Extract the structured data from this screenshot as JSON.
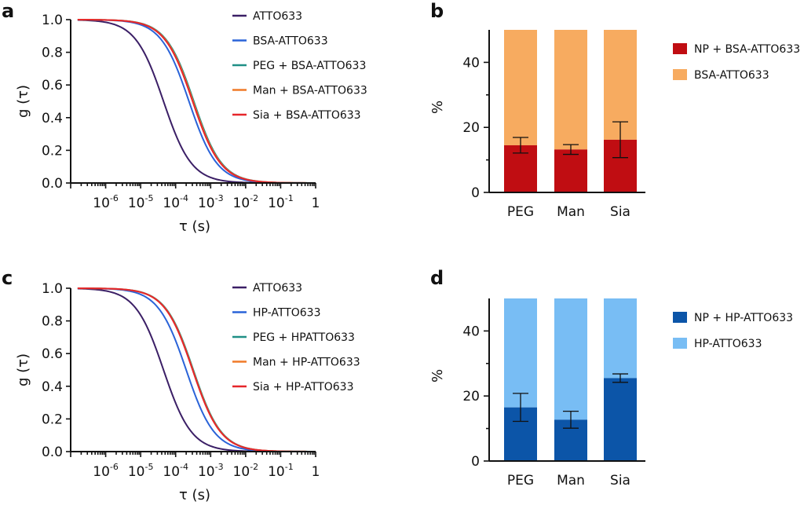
{
  "chart_data": [
    {
      "panel": "a",
      "type": "line",
      "xscale": "log",
      "xlabel": "τ (s)",
      "ylabel": "g (τ)",
      "xlim": [
        1e-07,
        1
      ],
      "ylim": [
        0,
        1.0
      ],
      "x_ticks": [
        {
          "base": "10",
          "exp": "-6",
          "value": 1e-06
        },
        {
          "base": "10",
          "exp": "-5",
          "value": 1e-05
        },
        {
          "base": "10",
          "exp": "-4",
          "value": 0.0001
        },
        {
          "base": "10",
          "exp": "-3",
          "value": 0.001
        },
        {
          "base": "10",
          "exp": "-2",
          "value": 0.01
        },
        {
          "base": "10",
          "exp": "-1",
          "value": 0.1
        },
        {
          "base": "1",
          "exp": "",
          "value": 1
        }
      ],
      "y_ticks": [
        "0.0",
        "0.2",
        "0.4",
        "0.6",
        "0.8",
        "1.0"
      ],
      "y_tick_values": [
        0,
        0.2,
        0.4,
        0.6,
        0.8,
        1.0
      ],
      "series": [
        {
          "name": "ATTO633",
          "color": "#3b1f66",
          "tau_half": 4.5e-05
        },
        {
          "name": "BSA-ATTO633",
          "color": "#2a63d8",
          "tau_half": 0.00024
        },
        {
          "name": "PEG + BSA-ATTO633",
          "color": "#1f8f86",
          "tau_half": 0.00033
        },
        {
          "name": "Man + BSA-ATTO633",
          "color": "#f07a28",
          "tau_half": 0.000315
        },
        {
          "name": "Sia + BSA-ATTO633",
          "color": "#e6262b",
          "tau_half": 0.000305
        }
      ]
    },
    {
      "panel": "b",
      "type": "bar",
      "stacked": true,
      "categories": [
        "PEG",
        "Man",
        "Sia"
      ],
      "ylabel": "%",
      "ylim": [
        0,
        50
      ],
      "y_ticks": [
        "0",
        "20",
        "40"
      ],
      "y_tick_values": [
        0,
        20,
        40
      ],
      "series": [
        {
          "name": "NP + BSA-ATTO633",
          "color": "#c00d12",
          "values": [
            14.5,
            13.2,
            16.2
          ],
          "errors": [
            2.4,
            1.5,
            5.5
          ]
        },
        {
          "name": "BSA-ATTO633",
          "color": "#f7ab60",
          "values": [
            35.5,
            36.8,
            33.8
          ]
        }
      ]
    },
    {
      "panel": "c",
      "type": "line",
      "xscale": "log",
      "xlabel": "τ (s)",
      "ylabel": "g (τ)",
      "xlim": [
        1e-07,
        1
      ],
      "ylim": [
        0,
        1.0
      ],
      "x_ticks": [
        {
          "base": "10",
          "exp": "-6",
          "value": 1e-06
        },
        {
          "base": "10",
          "exp": "-5",
          "value": 1e-05
        },
        {
          "base": "10",
          "exp": "-4",
          "value": 0.0001
        },
        {
          "base": "10",
          "exp": "-3",
          "value": 0.001
        },
        {
          "base": "10",
          "exp": "-2",
          "value": 0.01
        },
        {
          "base": "10",
          "exp": "-1",
          "value": 0.1
        },
        {
          "base": "1",
          "exp": "",
          "value": 1
        }
      ],
      "y_ticks": [
        "0.0",
        "0.2",
        "0.4",
        "0.6",
        "0.8",
        "1.0"
      ],
      "y_tick_values": [
        0,
        0.2,
        0.4,
        0.6,
        0.8,
        1.0
      ],
      "series": [
        {
          "name": "ATTO633",
          "color": "#3b1f66",
          "tau_half": 4.5e-05
        },
        {
          "name": "HP-ATTO633",
          "color": "#2a63d8",
          "tau_half": 0.0002
        },
        {
          "name": "PEG + HPATTO633",
          "color": "#1f8f86",
          "tau_half": 0.00032
        },
        {
          "name": "Man + HP-ATTO633",
          "color": "#f07a28",
          "tau_half": 0.00031
        },
        {
          "name": "Sia + HP-ATTO633",
          "color": "#e6262b",
          "tau_half": 0.000305
        }
      ]
    },
    {
      "panel": "d",
      "type": "bar",
      "stacked": true,
      "categories": [
        "PEG",
        "Man",
        "Sia"
      ],
      "ylabel": "%",
      "ylim": [
        0,
        50
      ],
      "y_ticks": [
        "0",
        "20",
        "40"
      ],
      "y_tick_values": [
        0,
        20,
        40
      ],
      "series": [
        {
          "name": "NP + HP-ATTO633",
          "color": "#0c55a8",
          "values": [
            16.5,
            12.7,
            25.5
          ],
          "errors": [
            4.3,
            2.6,
            1.3
          ]
        },
        {
          "name": "HP-ATTO633",
          "color": "#78bdf4",
          "values": [
            33.5,
            37.3,
            24.5
          ]
        }
      ]
    }
  ]
}
